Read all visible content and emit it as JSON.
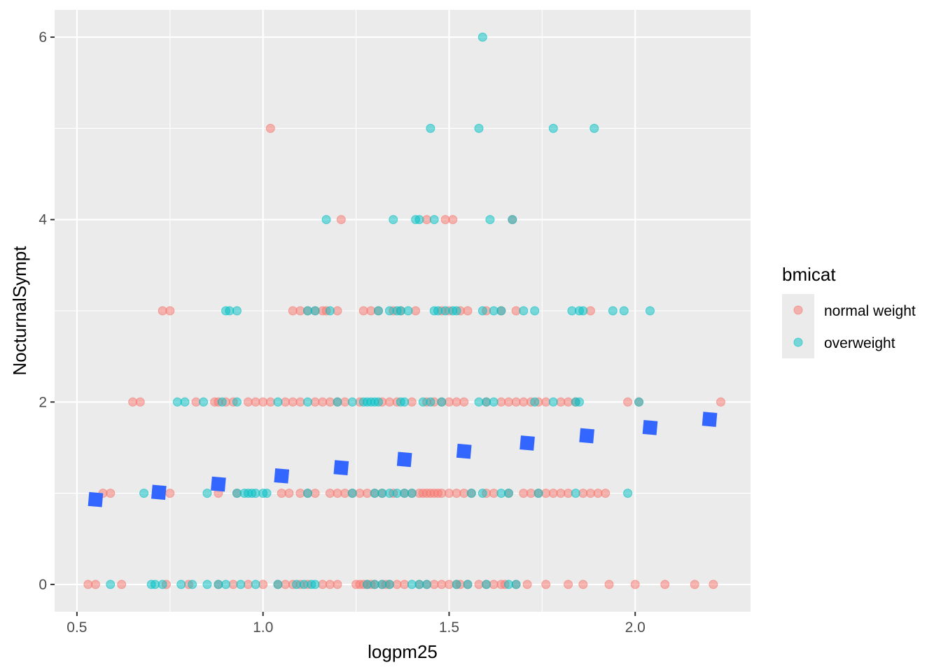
{
  "chart_data": {
    "type": "scatter",
    "xlabel": "logpm25",
    "ylabel": "NocturnalSympt",
    "xlim": [
      0.44,
      2.31
    ],
    "ylim": [
      -0.3,
      6.3
    ],
    "x_ticks": [
      0.5,
      1.0,
      1.5,
      2.0
    ],
    "x_tick_labels": [
      "0.5",
      "1.0",
      "1.5",
      "2.0"
    ],
    "y_ticks": [
      0,
      2,
      4,
      6
    ],
    "y_tick_labels": [
      "0",
      "2",
      "4",
      "6"
    ],
    "grid": true,
    "legend": {
      "title": "bmicat",
      "placement": "right",
      "entries": [
        "normal weight",
        "overweight"
      ]
    },
    "series": [
      {
        "name": "normal weight",
        "color": "#F8766D",
        "points": [
          [
            0.53,
            0
          ],
          [
            0.55,
            0
          ],
          [
            0.62,
            0
          ],
          [
            0.74,
            0
          ],
          [
            0.8,
            0
          ],
          [
            0.88,
            0
          ],
          [
            0.92,
            0
          ],
          [
            0.96,
            0
          ],
          [
            1.0,
            0
          ],
          [
            1.04,
            0
          ],
          [
            1.06,
            0
          ],
          [
            1.08,
            0
          ],
          [
            1.1,
            0
          ],
          [
            1.12,
            0
          ],
          [
            1.16,
            0
          ],
          [
            1.18,
            0
          ],
          [
            1.2,
            0
          ],
          [
            1.25,
            0
          ],
          [
            1.26,
            0
          ],
          [
            1.27,
            0
          ],
          [
            1.28,
            0
          ],
          [
            1.29,
            0
          ],
          [
            1.3,
            0
          ],
          [
            1.32,
            0
          ],
          [
            1.33,
            0
          ],
          [
            1.34,
            0
          ],
          [
            1.36,
            0
          ],
          [
            1.38,
            0
          ],
          [
            1.42,
            0
          ],
          [
            1.44,
            0
          ],
          [
            1.46,
            0
          ],
          [
            1.48,
            0
          ],
          [
            1.5,
            0
          ],
          [
            1.52,
            0
          ],
          [
            1.53,
            0
          ],
          [
            1.55,
            0
          ],
          [
            1.58,
            0
          ],
          [
            1.6,
            0
          ],
          [
            1.62,
            0
          ],
          [
            1.64,
            0
          ],
          [
            1.65,
            0
          ],
          [
            1.68,
            0
          ],
          [
            1.71,
            0
          ],
          [
            1.76,
            0
          ],
          [
            1.82,
            0
          ],
          [
            1.86,
            0
          ],
          [
            1.93,
            0
          ],
          [
            2.0,
            0
          ],
          [
            2.08,
            0
          ],
          [
            2.16,
            0
          ],
          [
            2.21,
            0
          ],
          [
            0.57,
            1
          ],
          [
            0.59,
            1
          ],
          [
            0.75,
            1
          ],
          [
            0.88,
            1
          ],
          [
            0.93,
            1
          ],
          [
            1.05,
            1
          ],
          [
            1.07,
            1
          ],
          [
            1.1,
            1
          ],
          [
            1.12,
            1
          ],
          [
            1.14,
            1
          ],
          [
            1.18,
            1
          ],
          [
            1.2,
            1
          ],
          [
            1.22,
            1
          ],
          [
            1.24,
            1
          ],
          [
            1.26,
            1
          ],
          [
            1.28,
            1
          ],
          [
            1.3,
            1
          ],
          [
            1.32,
            1
          ],
          [
            1.35,
            1
          ],
          [
            1.38,
            1
          ],
          [
            1.4,
            1
          ],
          [
            1.42,
            1
          ],
          [
            1.43,
            1
          ],
          [
            1.44,
            1
          ],
          [
            1.45,
            1
          ],
          [
            1.46,
            1
          ],
          [
            1.47,
            1
          ],
          [
            1.48,
            1
          ],
          [
            1.5,
            1
          ],
          [
            1.52,
            1
          ],
          [
            1.54,
            1
          ],
          [
            1.56,
            1
          ],
          [
            1.6,
            1
          ],
          [
            1.62,
            1
          ],
          [
            1.66,
            1
          ],
          [
            1.7,
            1
          ],
          [
            1.72,
            1
          ],
          [
            1.74,
            1
          ],
          [
            1.76,
            1
          ],
          [
            1.78,
            1
          ],
          [
            1.8,
            1
          ],
          [
            1.82,
            1
          ],
          [
            1.86,
            1
          ],
          [
            1.88,
            1
          ],
          [
            1.9,
            1
          ],
          [
            1.92,
            1
          ],
          [
            0.65,
            2
          ],
          [
            0.67,
            2
          ],
          [
            0.82,
            2
          ],
          [
            0.87,
            2
          ],
          [
            0.88,
            2
          ],
          [
            0.9,
            2
          ],
          [
            0.92,
            2
          ],
          [
            0.96,
            2
          ],
          [
            0.98,
            2
          ],
          [
            1.0,
            2
          ],
          [
            1.02,
            2
          ],
          [
            1.06,
            2
          ],
          [
            1.08,
            2
          ],
          [
            1.1,
            2
          ],
          [
            1.14,
            2
          ],
          [
            1.16,
            2
          ],
          [
            1.18,
            2
          ],
          [
            1.2,
            2
          ],
          [
            1.22,
            2
          ],
          [
            1.26,
            2
          ],
          [
            1.32,
            2
          ],
          [
            1.34,
            2
          ],
          [
            1.36,
            2
          ],
          [
            1.4,
            2
          ],
          [
            1.44,
            2
          ],
          [
            1.46,
            2
          ],
          [
            1.48,
            2
          ],
          [
            1.5,
            2
          ],
          [
            1.52,
            2
          ],
          [
            1.54,
            2
          ],
          [
            1.6,
            2
          ],
          [
            1.64,
            2
          ],
          [
            1.66,
            2
          ],
          [
            1.68,
            2
          ],
          [
            1.7,
            2
          ],
          [
            1.72,
            2
          ],
          [
            1.74,
            2
          ],
          [
            1.76,
            2
          ],
          [
            1.8,
            2
          ],
          [
            1.82,
            2
          ],
          [
            1.84,
            2
          ],
          [
            1.98,
            2
          ],
          [
            2.01,
            2
          ],
          [
            2.23,
            2
          ],
          [
            0.73,
            3
          ],
          [
            0.75,
            3
          ],
          [
            1.08,
            3
          ],
          [
            1.1,
            3
          ],
          [
            1.12,
            3
          ],
          [
            1.14,
            3
          ],
          [
            1.16,
            3
          ],
          [
            1.17,
            3
          ],
          [
            1.2,
            3
          ],
          [
            1.27,
            3
          ],
          [
            1.29,
            3
          ],
          [
            1.31,
            3
          ],
          [
            1.35,
            3
          ],
          [
            1.37,
            3
          ],
          [
            1.41,
            3
          ],
          [
            1.48,
            3
          ],
          [
            1.5,
            3
          ],
          [
            1.53,
            3
          ],
          [
            1.55,
            3
          ],
          [
            1.6,
            3
          ],
          [
            1.64,
            3
          ],
          [
            1.68,
            3
          ],
          [
            1.88,
            3
          ],
          [
            1.21,
            4
          ],
          [
            1.44,
            4
          ],
          [
            1.49,
            4
          ],
          [
            1.51,
            4
          ],
          [
            1.67,
            4
          ],
          [
            1.02,
            5
          ]
        ]
      },
      {
        "name": "overweight",
        "color": "#00BFC4",
        "points": [
          [
            0.59,
            0
          ],
          [
            0.7,
            0
          ],
          [
            0.71,
            0
          ],
          [
            0.73,
            0
          ],
          [
            0.78,
            0
          ],
          [
            0.81,
            0
          ],
          [
            0.85,
            0
          ],
          [
            0.88,
            0
          ],
          [
            0.9,
            0
          ],
          [
            0.94,
            0
          ],
          [
            0.98,
            0
          ],
          [
            1.04,
            0
          ],
          [
            1.09,
            0
          ],
          [
            1.11,
            0
          ],
          [
            1.13,
            0
          ],
          [
            1.14,
            0
          ],
          [
            1.28,
            0
          ],
          [
            1.3,
            0
          ],
          [
            1.32,
            0
          ],
          [
            1.34,
            0
          ],
          [
            1.4,
            0
          ],
          [
            1.42,
            0
          ],
          [
            1.44,
            0
          ],
          [
            1.52,
            0
          ],
          [
            1.55,
            0
          ],
          [
            1.6,
            0
          ],
          [
            1.66,
            0
          ],
          [
            1.68,
            0
          ],
          [
            0.68,
            1
          ],
          [
            0.85,
            1
          ],
          [
            0.93,
            1
          ],
          [
            0.95,
            1
          ],
          [
            0.96,
            1
          ],
          [
            0.97,
            1
          ],
          [
            0.98,
            1
          ],
          [
            1.0,
            1
          ],
          [
            1.01,
            1
          ],
          [
            1.12,
            1
          ],
          [
            1.24,
            1
          ],
          [
            1.3,
            1
          ],
          [
            1.32,
            1
          ],
          [
            1.34,
            1
          ],
          [
            1.36,
            1
          ],
          [
            1.38,
            1
          ],
          [
            1.4,
            1
          ],
          [
            1.56,
            1
          ],
          [
            1.59,
            1
          ],
          [
            1.64,
            1
          ],
          [
            1.66,
            1
          ],
          [
            1.74,
            1
          ],
          [
            1.84,
            1
          ],
          [
            1.98,
            1
          ],
          [
            0.77,
            2
          ],
          [
            0.79,
            2
          ],
          [
            0.84,
            2
          ],
          [
            0.89,
            2
          ],
          [
            0.93,
            2
          ],
          [
            1.04,
            2
          ],
          [
            1.12,
            2
          ],
          [
            1.2,
            2
          ],
          [
            1.24,
            2
          ],
          [
            1.27,
            2
          ],
          [
            1.28,
            2
          ],
          [
            1.29,
            2
          ],
          [
            1.3,
            2
          ],
          [
            1.31,
            2
          ],
          [
            1.37,
            2
          ],
          [
            1.38,
            2
          ],
          [
            1.43,
            2
          ],
          [
            1.45,
            2
          ],
          [
            1.48,
            2
          ],
          [
            1.58,
            2
          ],
          [
            1.6,
            2
          ],
          [
            1.62,
            2
          ],
          [
            1.73,
            2
          ],
          [
            1.78,
            2
          ],
          [
            1.84,
            2
          ],
          [
            1.85,
            2
          ],
          [
            2.01,
            2
          ],
          [
            0.9,
            3
          ],
          [
            0.91,
            3
          ],
          [
            0.93,
            3
          ],
          [
            1.12,
            3
          ],
          [
            1.14,
            3
          ],
          [
            1.18,
            3
          ],
          [
            1.31,
            3
          ],
          [
            1.34,
            3
          ],
          [
            1.36,
            3
          ],
          [
            1.37,
            3
          ],
          [
            1.39,
            3
          ],
          [
            1.46,
            3
          ],
          [
            1.47,
            3
          ],
          [
            1.49,
            3
          ],
          [
            1.51,
            3
          ],
          [
            1.52,
            3
          ],
          [
            1.59,
            3
          ],
          [
            1.62,
            3
          ],
          [
            1.64,
            3
          ],
          [
            1.7,
            3
          ],
          [
            1.73,
            3
          ],
          [
            1.83,
            3
          ],
          [
            1.85,
            3
          ],
          [
            1.86,
            3
          ],
          [
            1.94,
            3
          ],
          [
            1.97,
            3
          ],
          [
            2.04,
            3
          ],
          [
            1.17,
            4
          ],
          [
            1.35,
            4
          ],
          [
            1.41,
            4
          ],
          [
            1.42,
            4
          ],
          [
            1.46,
            4
          ],
          [
            1.61,
            4
          ],
          [
            1.67,
            4
          ],
          [
            1.45,
            5
          ],
          [
            1.58,
            5
          ],
          [
            1.78,
            5
          ],
          [
            1.89,
            5
          ],
          [
            1.59,
            6
          ]
        ]
      }
    ],
    "trend_markers": {
      "color": "#3366FF",
      "points": [
        [
          0.55,
          0.93
        ],
        [
          0.72,
          1.01
        ],
        [
          0.88,
          1.1
        ],
        [
          1.05,
          1.19
        ],
        [
          1.21,
          1.28
        ],
        [
          1.38,
          1.37
        ],
        [
          1.54,
          1.46
        ],
        [
          1.71,
          1.55
        ],
        [
          1.87,
          1.63
        ],
        [
          2.04,
          1.72
        ],
        [
          2.2,
          1.81
        ]
      ]
    }
  }
}
